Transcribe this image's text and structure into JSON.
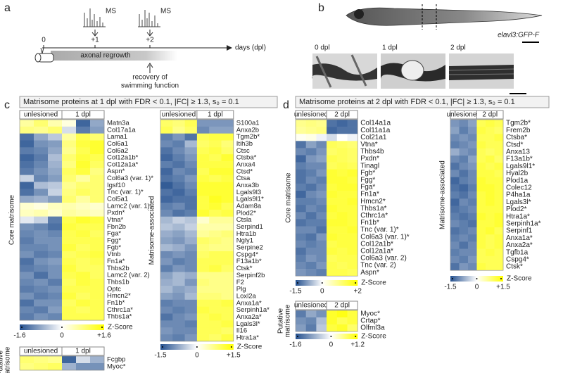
{
  "panel_labels": [
    "a",
    "b",
    "c",
    "d"
  ],
  "colormap": {
    "negative": "#24508f",
    "zero": "#ffffff",
    "positive": "#ffff00"
  },
  "panel_a": {
    "ms_labels": [
      "MS",
      "MS"
    ],
    "timepoints": [
      "0",
      "+1",
      "+2"
    ],
    "axis_label": "days (dpl)",
    "bar_label": "axonal regrowth",
    "recovery_label": [
      "recovery of",
      "swimming function"
    ]
  },
  "panel_b": {
    "line_label": "elavl3:GFP-F",
    "timepoints": [
      "0 dpl",
      "1 dpl",
      "2 dpl"
    ]
  },
  "panel_c": {
    "title": "Matrisome proteins at 1 dpl with FDR < 0.1, |FC| ≥ 1.3, s₀ = 0.1",
    "heatmaps": [
      {
        "group_label": [
          "Core matrisome"
        ],
        "column_groups": [
          "unlesioned",
          "1 dpl"
        ],
        "zlim": [
          -1.6,
          1.6
        ],
        "colorbar_ticks": [
          -1.6,
          0,
          {
            "value": 1.6,
            "label": "+1.6"
          }
        ],
        "colorbar_label": "Z-Score",
        "rows": [
          "Matn3a",
          "Col17a1a",
          "Lama1",
          "Col6a1",
          "Col6a2",
          "Col12a1b*",
          "Col12a1a*",
          "Aspn*",
          "Col6a3 (var. 1)*",
          "Igsf10",
          "Tnc (var. 1)*",
          "Col5a1",
          "Lamc2 (var. 1)",
          "Pxdn*",
          "Vtna*",
          "Fbn2b",
          "Fga*",
          "Fgg*",
          "Fgb*",
          "Vtnb",
          "Fn1a*",
          "Thbs2b",
          "Lamc2 (var. 2)",
          "Thbs1b",
          "Optc",
          "Hmcn2*",
          "Fn1b*",
          "Cthrc1a*",
          "Thbs1a*"
        ],
        "values": [
          [
            0.6,
            0.9,
            0.5,
            0.2,
            -1.4,
            -0.8
          ],
          [
            0.8,
            0.7,
            0.9,
            -0.3,
            -1.2,
            -0.9
          ],
          [
            -1.3,
            -0.8,
            -0.5,
            0.6,
            1.1,
            0.9
          ],
          [
            -1.4,
            -1.0,
            -0.9,
            0.8,
            1.2,
            1.3
          ],
          [
            -1.2,
            -1.1,
            -0.8,
            0.7,
            1.1,
            1.3
          ],
          [
            -1.4,
            -1.2,
            -0.6,
            0.9,
            1.2,
            1.1
          ],
          [
            -1.3,
            -1.1,
            -0.7,
            0.8,
            1.3,
            1.0
          ],
          [
            -1.2,
            -1.0,
            -0.8,
            1.0,
            1.2,
            0.8
          ],
          [
            -0.4,
            -1.1,
            -0.9,
            0.9,
            0.6,
            0.9
          ],
          [
            -1.4,
            -0.6,
            -0.5,
            0.7,
            0.9,
            0.9
          ],
          [
            -1.3,
            -1.0,
            -0.4,
            0.8,
            1.0,
            0.9
          ],
          [
            -0.8,
            -0.7,
            -0.9,
            0.9,
            0.6,
            0.9
          ],
          [
            0.3,
            0.2,
            0.4,
            0.5,
            0.4,
            0.3
          ],
          [
            0.4,
            0.5,
            0.3,
            0.6,
            0.5,
            0.4
          ],
          [
            -0.2,
            -0.4,
            -1.2,
            1.1,
            1.3,
            1.2
          ],
          [
            -1.0,
            -1.1,
            -1.3,
            1.2,
            1.1,
            1.1
          ],
          [
            -1.1,
            -1.0,
            -1.1,
            1.1,
            1.2,
            1.0
          ],
          [
            -1.2,
            -1.0,
            -1.0,
            1.1,
            1.1,
            1.1
          ],
          [
            -1.1,
            -1.1,
            -1.0,
            1.2,
            1.0,
            1.1
          ],
          [
            -1.0,
            -1.2,
            -1.1,
            1.0,
            1.1,
            1.2
          ],
          [
            -1.3,
            -1.0,
            -0.9,
            1.1,
            1.0,
            1.1
          ],
          [
            -1.2,
            -1.1,
            -1.0,
            1.2,
            1.0,
            1.0
          ],
          [
            -1.0,
            -1.3,
            -1.0,
            1.1,
            1.2,
            1.0
          ],
          [
            -1.1,
            -1.0,
            -1.2,
            1.0,
            1.2,
            1.1
          ],
          [
            -1.2,
            -1.1,
            -1.0,
            1.1,
            1.1,
            1.1
          ],
          [
            -1.0,
            -1.2,
            -1.1,
            1.2,
            1.0,
            1.1
          ],
          [
            -1.3,
            -1.0,
            -1.0,
            1.0,
            1.2,
            1.1
          ],
          [
            -1.1,
            -1.2,
            -0.9,
            1.1,
            1.0,
            1.1
          ],
          [
            -1.2,
            -1.0,
            -1.1,
            1.1,
            1.1,
            1.1
          ]
        ]
      },
      {
        "group_label": [
          "Matrisome-associated"
        ],
        "column_groups": [
          "unlesioned",
          "1 dpl"
        ],
        "zlim": [
          -1.5,
          1.5
        ],
        "colorbar_ticks": [
          -1.5,
          0,
          {
            "value": 1.5,
            "label": "+1.5"
          }
        ],
        "colorbar_label": "Z-Score",
        "rows": [
          "S100a1",
          "Anxa2b",
          "Tgm2b*",
          "Itih3b",
          "Ctsc",
          "Ctsba*",
          "Anxa4",
          "Ctsd*",
          "Ctsa",
          "Anxa3b",
          "Lgals9l3",
          "Lgals9l1*",
          "Adam8a",
          "Plod2*",
          "Ctsla",
          "Serpind1",
          "Htra1b",
          "Ngly1",
          "Serpine2",
          "Cspg4*",
          "F13a1b*",
          "Ctsk*",
          "Serpinf2b",
          "F2",
          "Plg",
          "Loxl2a",
          "Anxa1a*",
          "Serpinh1a*",
          "Anxa2a*",
          "Lgals3l*",
          "Il16",
          "Htra1a*"
        ],
        "values": [
          [
            0.9,
            0.8,
            1.0,
            -0.9,
            -0.9,
            -0.9
          ],
          [
            1.0,
            0.7,
            0.9,
            -1.0,
            -0.8,
            -0.8
          ],
          [
            -1.1,
            -0.9,
            -1.2,
            1.0,
            1.1,
            1.1
          ],
          [
            -1.0,
            -1.1,
            -0.6,
            0.9,
            1.0,
            0.8
          ],
          [
            -1.2,
            -1.0,
            -0.8,
            1.0,
            1.1,
            0.9
          ],
          [
            -1.3,
            -1.1,
            -0.9,
            1.1,
            1.0,
            1.2
          ],
          [
            -1.1,
            -1.2,
            -1.0,
            1.1,
            1.1,
            1.1
          ],
          [
            -1.3,
            -1.0,
            -1.1,
            1.0,
            1.2,
            1.2
          ],
          [
            -1.2,
            -1.1,
            -0.9,
            1.1,
            1.0,
            1.1
          ],
          [
            -1.4,
            -1.2,
            -1.0,
            1.2,
            1.2,
            1.2
          ],
          [
            -1.2,
            -1.3,
            -1.1,
            1.2,
            1.2,
            1.2
          ],
          [
            -1.3,
            -1.2,
            -1.2,
            1.1,
            1.3,
            1.2
          ],
          [
            -1.1,
            -1.0,
            -1.2,
            1.1,
            1.2,
            1.0
          ],
          [
            -1.0,
            -1.2,
            -1.1,
            1.2,
            1.0,
            1.1
          ],
          [
            -0.6,
            -0.4,
            -0.5,
            0.3,
            0.6,
            0.6
          ],
          [
            -0.5,
            -0.6,
            -0.4,
            0.5,
            0.5,
            0.5
          ],
          [
            -0.7,
            -0.8,
            -0.6,
            0.6,
            0.7,
            0.8
          ],
          [
            -0.8,
            -0.9,
            -0.7,
            0.9,
            0.8,
            0.7
          ],
          [
            -0.6,
            -0.7,
            -0.9,
            0.8,
            0.7,
            0.7
          ],
          [
            -1.0,
            -0.9,
            -1.0,
            0.9,
            1.0,
            1.0
          ],
          [
            -0.9,
            -1.1,
            -1.0,
            1.0,
            1.0,
            1.0
          ],
          [
            -1.1,
            -0.9,
            -1.0,
            1.0,
            1.1,
            0.9
          ],
          [
            -0.8,
            -0.6,
            -0.7,
            0.7,
            0.7,
            0.7
          ],
          [
            -0.7,
            -0.6,
            -0.9,
            0.8,
            0.7,
            0.7
          ],
          [
            -0.6,
            -0.8,
            -0.7,
            0.7,
            0.7,
            0.7
          ],
          [
            -0.8,
            -0.9,
            -0.6,
            0.8,
            0.8,
            0.7
          ],
          [
            -1.1,
            -1.0,
            -1.0,
            1.0,
            1.0,
            1.1
          ],
          [
            -1.0,
            -1.1,
            -1.0,
            1.1,
            1.0,
            1.0
          ],
          [
            -1.2,
            -1.0,
            -0.9,
            1.0,
            1.1,
            1.0
          ],
          [
            -1.0,
            -1.0,
            -1.1,
            1.0,
            1.0,
            1.1
          ],
          [
            -0.9,
            -1.0,
            -1.0,
            1.0,
            1.0,
            0.9
          ],
          [
            -1.0,
            -1.1,
            -0.9,
            1.0,
            0.9,
            1.1
          ]
        ]
      },
      {
        "group_label": [
          "Putative",
          "matrisome"
        ],
        "column_groups": [
          "unlesioned",
          "1 dpl"
        ],
        "zlim": [
          -1.6,
          1.6
        ],
        "rows": [
          "Fcgbp",
          "Myoc*"
        ],
        "values": [
          [
            0.9,
            0.8,
            0.7,
            -1.4,
            -0.3,
            -0.7
          ],
          [
            0.8,
            0.9,
            1.0,
            -0.7,
            -1.0,
            -1.0
          ]
        ]
      }
    ]
  },
  "panel_d": {
    "title": "Matrisome proteins at 2 dpl with FDR < 0.1, |FC| ≥ 1.3, s₀ = 0.1",
    "heatmaps": [
      {
        "group_label": [
          "Core matrisome"
        ],
        "column_groups": [
          "unlesioned",
          "2 dpl"
        ],
        "zlim": [
          -1.5,
          2
        ],
        "colorbar_ticks": [
          -1.5,
          0,
          {
            "value": 2,
            "label": "+2"
          }
        ],
        "colorbar_label": "Z-Score",
        "rows": [
          "Col14a1a",
          "Col11a1a",
          "Col21a1",
          "Vtna*",
          "Thbs4b",
          "Pxdn*",
          "Tinagl",
          "Fgb*",
          "Fgg*",
          "Fga*",
          "Fn1a*",
          "Hmcn2*",
          "Thbs1a*",
          "Cthrc1a*",
          "Fn1b*",
          "Tnc (var. 1)*",
          "Col6a3 (var. 1)*",
          "Col12a1b*",
          "Col12a1a*",
          "Col6a3 (var. 2)",
          "Tnc (var. 2)",
          "Aspn*"
        ],
        "values": [
          [
            0.9,
            1.0,
            0.9,
            -1.2,
            -1.3,
            -1.2
          ],
          [
            0.8,
            0.9,
            1.0,
            -1.3,
            -1.2,
            -1.2
          ],
          [
            0.1,
            0.2,
            -0.1,
            -0.3,
            0.0,
            -0.1
          ],
          [
            -1.2,
            -0.8,
            -1.0,
            1.3,
            1.2,
            1.1
          ],
          [
            -1.0,
            -1.1,
            -0.9,
            1.2,
            1.3,
            1.2
          ],
          [
            -1.3,
            -0.9,
            -0.8,
            1.4,
            1.3,
            1.2
          ],
          [
            -1.1,
            -1.0,
            -1.0,
            1.3,
            1.4,
            1.3
          ],
          [
            -1.2,
            -1.1,
            -0.9,
            1.6,
            1.5,
            1.6
          ],
          [
            -1.2,
            -1.0,
            -1.1,
            1.6,
            1.6,
            1.5
          ],
          [
            -1.1,
            -1.2,
            -1.0,
            1.5,
            1.6,
            1.6
          ],
          [
            -1.3,
            -1.0,
            -0.9,
            1.6,
            1.5,
            1.5
          ],
          [
            -1.1,
            -1.1,
            -1.0,
            1.5,
            1.5,
            1.6
          ],
          [
            -1.2,
            -1.0,
            -1.1,
            1.6,
            1.5,
            1.5
          ],
          [
            -1.0,
            -1.2,
            -1.0,
            1.5,
            1.6,
            1.5
          ],
          [
            -1.2,
            -1.1,
            -1.1,
            1.6,
            1.6,
            1.5
          ],
          [
            -1.0,
            -1.0,
            -1.2,
            1.5,
            1.5,
            1.6
          ],
          [
            -1.1,
            -1.2,
            -0.9,
            1.6,
            1.5,
            1.5
          ],
          [
            -1.0,
            -1.1,
            -1.0,
            1.4,
            1.5,
            1.5
          ],
          [
            -1.2,
            -1.0,
            -1.0,
            1.5,
            1.4,
            1.5
          ],
          [
            -1.1,
            -0.9,
            -1.0,
            1.3,
            1.4,
            1.4
          ],
          [
            -1.0,
            -1.1,
            -0.9,
            1.4,
            1.3,
            1.4
          ],
          [
            -0.9,
            -1.0,
            -1.1,
            1.4,
            1.4,
            1.3
          ]
        ]
      },
      {
        "group_label": [
          "Matrisome-associated"
        ],
        "column_groups": [
          "unlesioned",
          "2 dpl"
        ],
        "zlim": [
          -1.5,
          1.5
        ],
        "colorbar_ticks": [
          -1.5,
          0,
          {
            "value": 1.5,
            "label": "+1.5"
          }
        ],
        "colorbar_label": "Z-Score",
        "rows": [
          "Tgm2b*",
          "Frem2b",
          "Ctsba*",
          "Ctsd*",
          "Anxa13",
          "F13a1b*",
          "Lgals9l1*",
          "Hyal2b",
          "Plod1a",
          "Colec12",
          "P4ha1a",
          "Lgals3l*",
          "Plod2*",
          "Htra1a*",
          "Serpinh1a*",
          "Serpinf1",
          "Anxa1a*",
          "Anxa2a*",
          "Tgfb1a",
          "Cspg4*",
          "Ctsk*"
        ],
        "values": [
          [
            -0.9,
            -1.0,
            -0.8,
            1.0,
            1.1,
            1.0
          ],
          [
            -0.8,
            -1.1,
            -0.9,
            1.1,
            1.0,
            0.9
          ],
          [
            -1.0,
            -0.9,
            -1.0,
            1.0,
            1.0,
            1.1
          ],
          [
            -1.1,
            -1.0,
            -0.9,
            1.1,
            1.0,
            1.0
          ],
          [
            -0.7,
            -0.9,
            -1.0,
            1.0,
            0.9,
            1.0
          ],
          [
            -1.0,
            -1.1,
            -0.8,
            1.0,
            1.1,
            0.9
          ],
          [
            -1.2,
            -1.0,
            -0.9,
            1.1,
            1.0,
            1.1
          ],
          [
            -1.0,
            -1.2,
            -1.0,
            1.1,
            1.1,
            1.0
          ],
          [
            -1.3,
            -1.1,
            -1.0,
            1.2,
            1.1,
            1.1
          ],
          [
            -1.2,
            -1.3,
            -1.1,
            1.2,
            1.2,
            1.1
          ],
          [
            -1.1,
            -1.2,
            -1.0,
            1.1,
            1.2,
            1.1
          ],
          [
            -1.3,
            -1.0,
            -1.1,
            1.1,
            1.2,
            1.1
          ],
          [
            -1.2,
            -1.1,
            -1.0,
            1.1,
            1.1,
            1.1
          ],
          [
            -1.1,
            -1.2,
            -1.1,
            1.2,
            1.1,
            1.2
          ],
          [
            -1.0,
            -1.1,
            -1.2,
            1.1,
            1.1,
            1.2
          ],
          [
            -1.2,
            -1.1,
            -1.0,
            1.1,
            1.2,
            1.0
          ],
          [
            -1.1,
            -1.0,
            -1.1,
            1.1,
            1.0,
            1.1
          ],
          [
            -1.0,
            -1.2,
            -1.0,
            1.1,
            1.0,
            1.1
          ],
          [
            -1.1,
            -1.0,
            -1.0,
            1.0,
            1.1,
            1.0
          ],
          [
            -1.0,
            -1.1,
            -0.9,
            1.0,
            1.0,
            1.0
          ],
          [
            -1.2,
            -0.9,
            -1.0,
            1.1,
            1.0,
            1.0
          ]
        ]
      },
      {
        "group_label": [
          "Putative",
          "matrisome"
        ],
        "column_groups": [
          "unlesioned",
          "2 dpl"
        ],
        "zlim": [
          -1.6,
          1.2
        ],
        "colorbar_ticks": [
          -1.6,
          0,
          {
            "value": 1.2,
            "label": "+1.2"
          }
        ],
        "colorbar_label": "Z-Score",
        "rows": [
          "Myoc*",
          "Crtap*",
          "Olfml3a"
        ],
        "values": [
          [
            -1.2,
            -0.8,
            -1.0,
            1.0,
            1.1,
            0.9
          ],
          [
            -1.0,
            -1.1,
            -0.6,
            1.0,
            0.8,
            0.9
          ],
          [
            -0.9,
            -1.2,
            -0.5,
            0.9,
            1.0,
            0.7
          ]
        ]
      }
    ]
  }
}
